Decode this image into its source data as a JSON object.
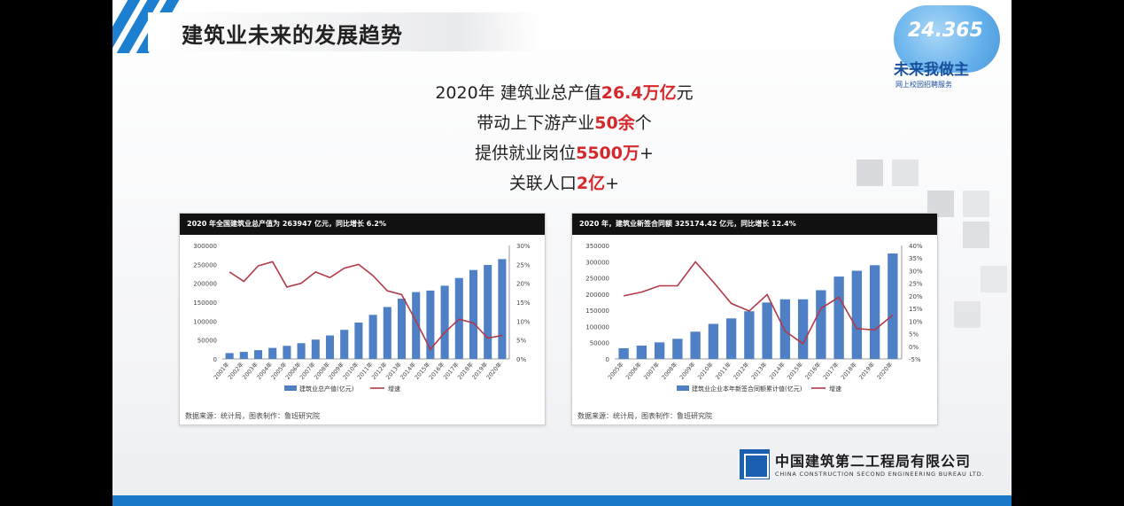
{
  "slide": {
    "title": "建筑业未来的发展趋势",
    "headline": [
      {
        "pre": "2020年 建筑业总产值",
        "hl": "26.4万亿",
        "post": "元"
      },
      {
        "pre": "带动上下游产业",
        "hl": "50余",
        "post": "个"
      },
      {
        "pre": "提供就业岗位",
        "hl": "5500万",
        "post": "+"
      },
      {
        "pre": "关联人口",
        "hl": "2亿",
        "post": "+"
      }
    ]
  },
  "logo_badge": {
    "number": "24.365",
    "slogan": "未来我做主",
    "sub": "网上校园招聘服务"
  },
  "company": {
    "name_cn": "中国建筑第二工程局有限公司",
    "name_en": "CHINA CONSTRUCTION SECOND ENGINEERING BUREAU LTD."
  },
  "colors": {
    "bar": "#4f7fc4",
    "line": "#b23a48",
    "highlight": "#d6282b",
    "accent": "#1d7fd0"
  },
  "chart_data": [
    {
      "type": "bar",
      "title": "2020 年全国建筑业总产值为 263947 亿元，同比增长 6.2%",
      "source": "数据来源：统计局，图表制作：鲁班研究院",
      "categories": [
        "2001年",
        "2002年",
        "2003年",
        "2004年",
        "2005年",
        "2006年",
        "2007年",
        "2008年",
        "2009年",
        "2010年",
        "2011年",
        "2012年",
        "2013年",
        "2014年",
        "2015年",
        "2016年",
        "2017年",
        "2018年",
        "2019年",
        "2020年"
      ],
      "series": [
        {
          "name": "建筑业总产值(亿元)",
          "kind": "bar",
          "axis": "left",
          "values": [
            15362,
            18527,
            23084,
            29021,
            34552,
            41557,
            51044,
            62037,
            76808,
            96031,
            116463,
            137218,
            159313,
            176713,
            180757,
            193567,
            213944,
            235086,
            248446,
            263947
          ]
        },
        {
          "name": "增速",
          "kind": "line",
          "axis": "right",
          "values": [
            23,
            20.5,
            24.6,
            25.7,
            19,
            20,
            23,
            21.5,
            24,
            25,
            22,
            18,
            17,
            10,
            2.5,
            7,
            10.5,
            9.5,
            5.5,
            6.2
          ]
        }
      ],
      "ylim_left": [
        0,
        300000
      ],
      "yticks_left": [
        "0",
        "50000",
        "100000",
        "150000",
        "200000",
        "250000",
        "300000"
      ],
      "ylim_right": [
        0,
        30
      ],
      "yticks_right": [
        "0%",
        "5%",
        "10%",
        "15%",
        "20%",
        "25%",
        "30%"
      ],
      "legend": "bottom"
    },
    {
      "type": "bar",
      "title": "2020 年，建筑业新签合同额 325174.42 亿元，同比增长 12.4%",
      "source": "数据来源：统计局，图表制作：鲁班研究院",
      "categories": [
        "2005年",
        "2006年",
        "2007年",
        "2008年",
        "2009年",
        "2010年",
        "2011年",
        "2012年",
        "2013年",
        "2014年",
        "2015年",
        "2016年",
        "2017年",
        "2018年",
        "2019年",
        "2020年"
      ],
      "series": [
        {
          "name": "建筑业企业本年新签合同额累计值(亿元)",
          "kind": "bar",
          "axis": "left",
          "values": [
            33000,
            41000,
            51000,
            62000,
            84000,
            108000,
            125000,
            147000,
            174000,
            184000,
            184000,
            212000,
            254000,
            272000,
            289000,
            325174
          ]
        },
        {
          "name": "增速",
          "kind": "line",
          "axis": "right",
          "values": [
            20,
            21.5,
            24,
            24,
            33.5,
            25.5,
            17,
            14,
            20.5,
            6,
            1,
            15,
            19.5,
            7,
            6.5,
            12.4
          ]
        }
      ],
      "ylim_left": [
        0,
        350000
      ],
      "yticks_left": [
        "0",
        "50000",
        "100000",
        "150000",
        "200000",
        "250000",
        "300000",
        "350000"
      ],
      "ylim_right": [
        -5,
        40
      ],
      "yticks_right": [
        "-5%",
        "0%",
        "5%",
        "10%",
        "15%",
        "20%",
        "25%",
        "30%",
        "35%",
        "40%"
      ],
      "legend": "bottom"
    }
  ]
}
